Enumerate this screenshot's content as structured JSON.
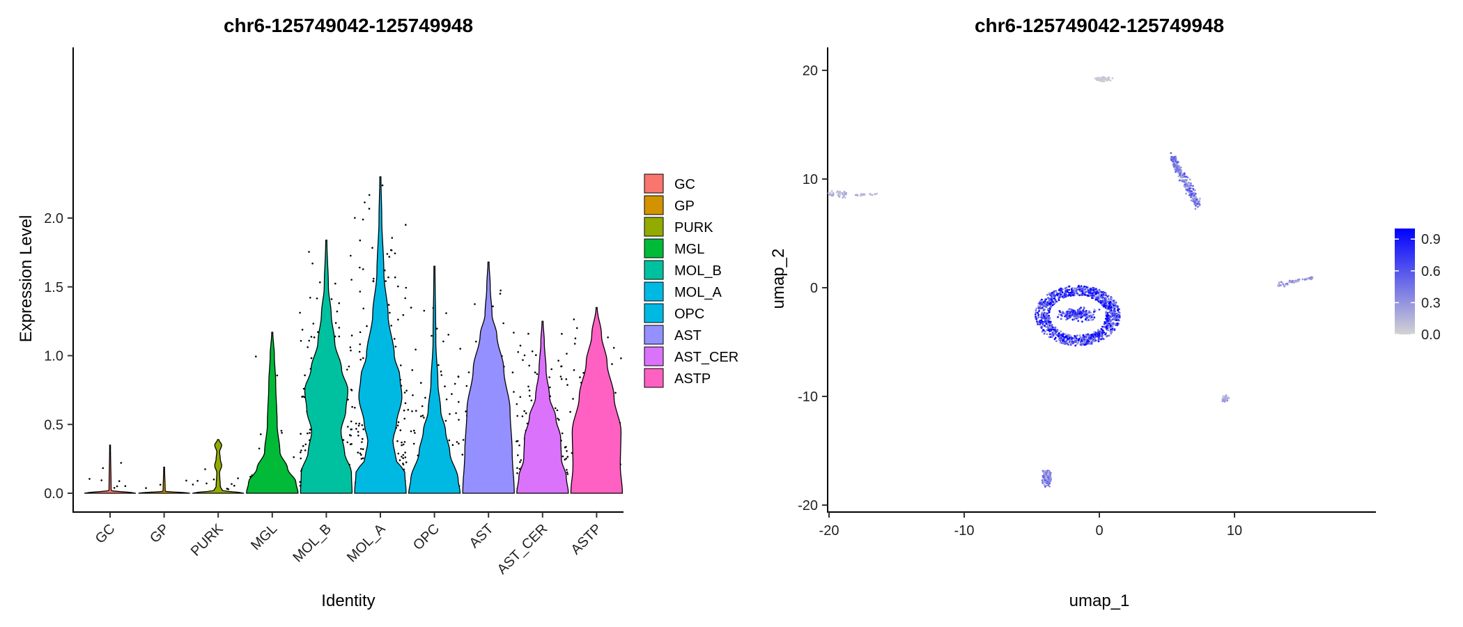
{
  "chart_data": [
    {
      "type": "violin",
      "title": "chr6-125749042-125749948",
      "xlabel": "Identity",
      "ylabel": "Expression Level",
      "ylim": [
        -0.1,
        2.4
      ],
      "yticks": [
        "0.0",
        "0.5",
        "1.0",
        "1.5",
        "2.0"
      ],
      "categories": [
        "GC",
        "GP",
        "PURK",
        "MGL",
        "MOL_B",
        "MOL_A",
        "OPC",
        "AST",
        "AST_CER",
        "ASTP"
      ],
      "colors": [
        "#F8766D",
        "#D39200",
        "#93AA00",
        "#00BA38",
        "#00C19F",
        "#00B9E3",
        "#00B9E3",
        "#9590FF",
        "#DB72FB",
        "#FF61C3"
      ],
      "max_values": [
        0.35,
        0.19,
        0.39,
        1.17,
        1.84,
        2.3,
        1.65,
        1.68,
        1.25,
        1.35
      ],
      "legend": {
        "position": "right",
        "entries": [
          "GC",
          "GP",
          "PURK",
          "MGL",
          "MOL_B",
          "MOL_A",
          "OPC",
          "AST",
          "AST_CER",
          "ASTP"
        ]
      },
      "grid": false
    },
    {
      "type": "scatter",
      "title": "chr6-125749042-125749948",
      "xlabel": "umap_1",
      "ylabel": "umap_2",
      "xlim": [
        -22,
        19
      ],
      "ylim": [
        -21,
        22
      ],
      "xticks": [
        "-20",
        "-10",
        "0",
        "10"
      ],
      "yticks": [
        "-20",
        "-10",
        "0",
        "10",
        "20"
      ],
      "clusters": [
        {
          "x": 0.3,
          "y": 19.2,
          "level": 0.05
        },
        {
          "x": -18.5,
          "y": 8.6,
          "level": 0.15
        },
        {
          "x": 6.3,
          "y": 9.8,
          "level": 0.45
        },
        {
          "x": -1.6,
          "y": -2.5,
          "level": 0.75
        },
        {
          "x": 14.5,
          "y": 0.6,
          "level": 0.3
        },
        {
          "x": 9.3,
          "y": -10.2,
          "level": 0.25
        },
        {
          "x": -3.9,
          "y": -17.5,
          "level": 0.4
        }
      ],
      "colorbar": {
        "low_color": "#D3D3D3",
        "high_color": "#0000FF",
        "ticks": [
          "0.0",
          "0.3",
          "0.6",
          "0.9"
        ],
        "position": "right"
      },
      "grid": false
    }
  ]
}
